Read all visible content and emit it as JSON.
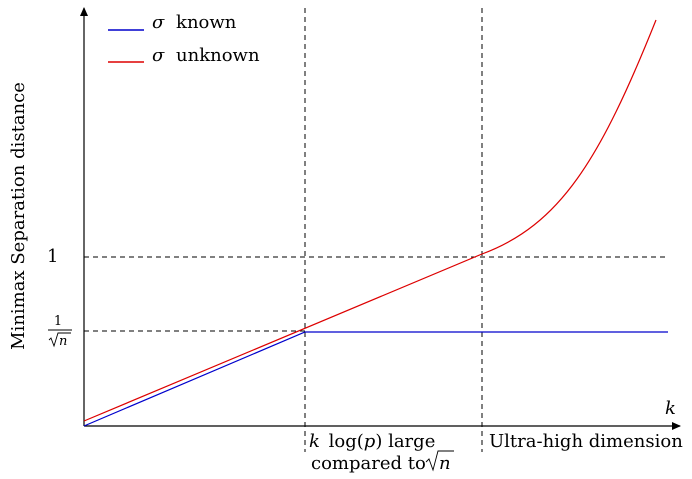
{
  "diagram": {
    "ylabel": "Minimax Separation distance",
    "xlabel": "k",
    "legend": [
      {
        "name": "σ known",
        "symbol": "σ",
        "text": "known",
        "color": "#0000cc"
      },
      {
        "name": "σ unknown",
        "symbol": "σ",
        "text": "unknown",
        "color": "#dd0000"
      }
    ],
    "y_ticks": {
      "one": "1",
      "inv_sqrt_num": "1",
      "inv_sqrt_den": "n"
    },
    "regions": {
      "first_line1_pre": "k",
      "first_line1_mid": "log(",
      "first_line1_var": "p",
      "first_line1_post": ") large",
      "first_line2": "compared to",
      "first_line2_var": "n",
      "second": "Ultra-high dimension"
    }
  }
}
